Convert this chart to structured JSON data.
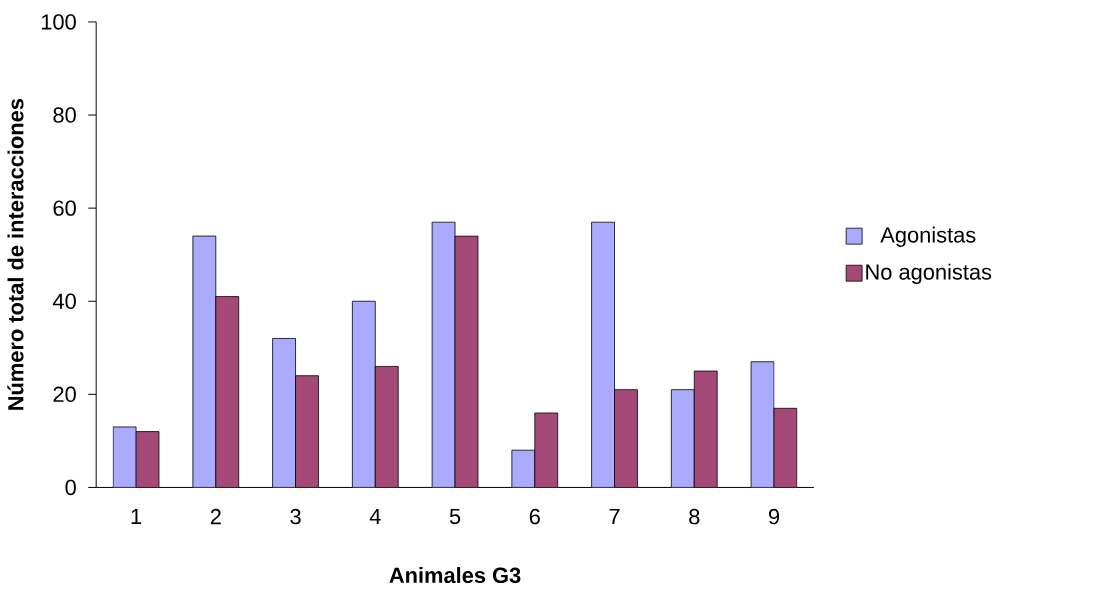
{
  "chart_data": {
    "type": "bar",
    "xlabel": "Animales G3",
    "ylabel": "Número total de interacciones",
    "categories": [
      "1",
      "2",
      "3",
      "4",
      "5",
      "6",
      "7",
      "8",
      "9"
    ],
    "series": [
      {
        "name": "Agonistas",
        "color": "#aaaaff",
        "values": [
          13,
          54,
          32,
          40,
          57,
          8,
          57,
          21,
          27
        ]
      },
      {
        "name": "No agonistas",
        "color": "#a54a78",
        "values": [
          12,
          41,
          24,
          26,
          54,
          16,
          21,
          25,
          17
        ]
      }
    ],
    "ylim": [
      0,
      100
    ],
    "yticks": [
      0,
      20,
      40,
      60,
      80,
      100
    ],
    "legend": "right"
  }
}
